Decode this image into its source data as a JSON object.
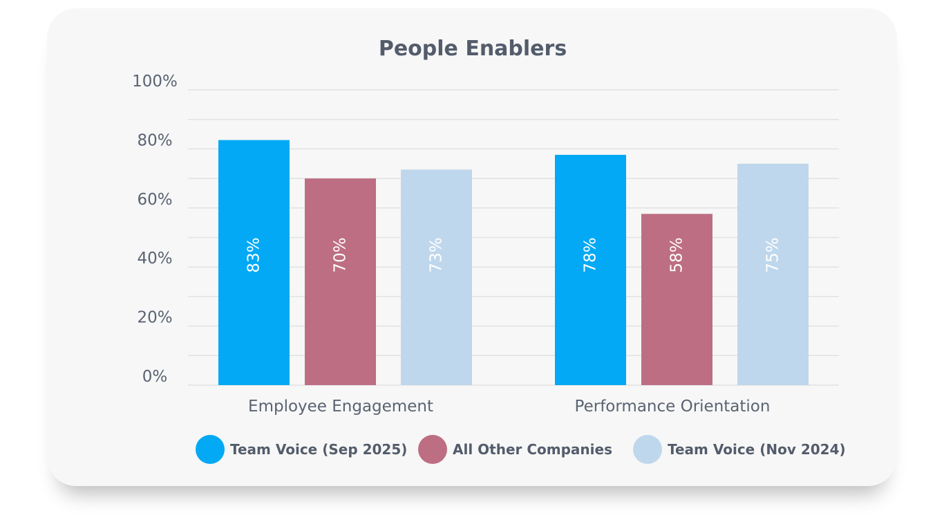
{
  "chart_data": {
    "type": "bar",
    "title": "People Enablers",
    "categories": [
      "Employee Engagement",
      "Performance Orientation"
    ],
    "series": [
      {
        "name": "Team Voice (Sep 2025)",
        "values": [
          83,
          78
        ],
        "labels": [
          "83%",
          "78%"
        ],
        "color": "#03A9F4"
      },
      {
        "name": "All Other Companies",
        "values": [
          70,
          58
        ],
        "labels": [
          "70%",
          "58%"
        ],
        "color": "#BD6E83"
      },
      {
        "name": "Team Voice (Nov 2024)",
        "values": [
          73,
          75
        ],
        "labels": [
          "73%",
          "75%"
        ],
        "color": "#BFD7EC"
      }
    ],
    "ylim": [
      0,
      100
    ],
    "yticks": [
      0,
      20,
      40,
      60,
      80,
      100
    ],
    "ytick_labels": [
      "0%",
      "20%",
      "40%",
      "60%",
      "80%",
      "100%"
    ],
    "grid": true,
    "xlabel": "",
    "ylabel": "",
    "legend_position": "bottom"
  }
}
